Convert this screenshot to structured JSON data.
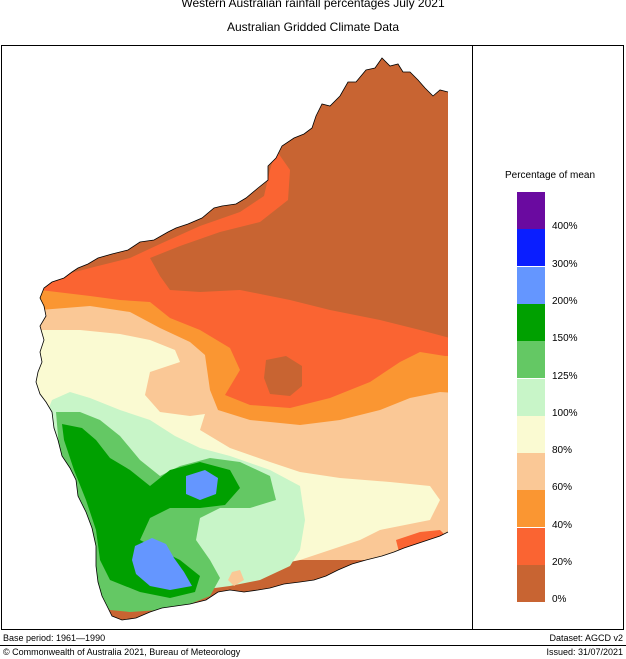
{
  "title": "Western Australian rainfall percentages July 2021",
  "subtitle": "Australian Gridded Climate Data",
  "legend": {
    "title": "Percentage of mean",
    "bands": [
      {
        "color": "#6a0aa0"
      },
      {
        "color": "#0a1eff"
      },
      {
        "color": "#6496ff"
      },
      {
        "color": "#00a000"
      },
      {
        "color": "#64c864"
      },
      {
        "color": "#c8f5c8"
      },
      {
        "color": "#fafad2"
      },
      {
        "color": "#fac896"
      },
      {
        "color": "#fa9632"
      },
      {
        "color": "#fa6432"
      },
      {
        "color": "#c86432"
      }
    ],
    "ticks": [
      "400%",
      "300%",
      "200%",
      "150%",
      "125%",
      "100%",
      "80%",
      "60%",
      "40%",
      "20%",
      "0%"
    ]
  },
  "footer": {
    "base_period": "Base period: 1961—1990",
    "dataset": "Dataset: AGCD v2",
    "copyright": "© Commonwealth of Australia 2021, Bureau of Meteorology",
    "issued": "Issued: 31/07/2021"
  }
}
